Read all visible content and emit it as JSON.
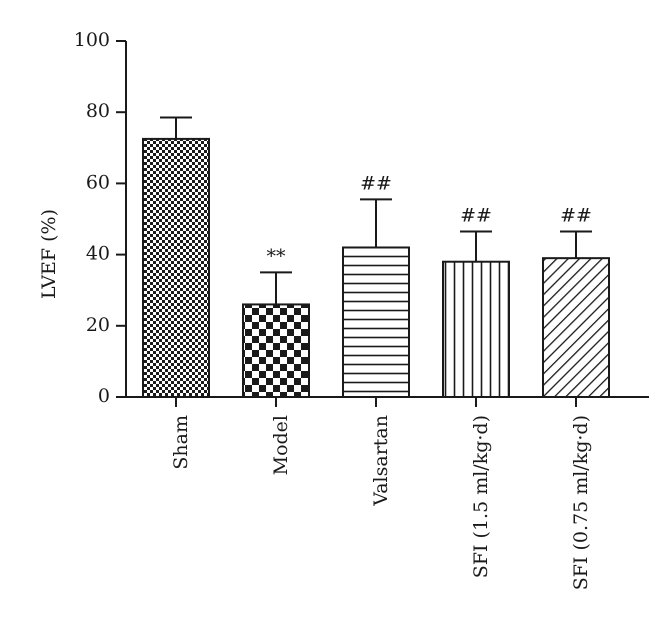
{
  "chart_data": {
    "type": "bar",
    "ylabel": "LVEF (%)",
    "ylim": [
      0,
      100
    ],
    "yticks": [
      0,
      20,
      40,
      60,
      80,
      100
    ],
    "categories": [
      "Sham",
      "Model",
      "Valsartan",
      "SFI (1.5 ml/kg·d)",
      "SFI (0.75 ml/kg·d)"
    ],
    "values": [
      72.5,
      26,
      42,
      38,
      39
    ],
    "error": [
      6,
      9,
      13.5,
      8.5,
      7.5
    ],
    "annotations": [
      "",
      "**",
      "##",
      "##",
      "##"
    ],
    "patterns": [
      "fine-checker",
      "checker",
      "horizontal-lines",
      "vertical-lines",
      "diagonal-lines"
    ],
    "bar_color": "#1a1a1a"
  }
}
